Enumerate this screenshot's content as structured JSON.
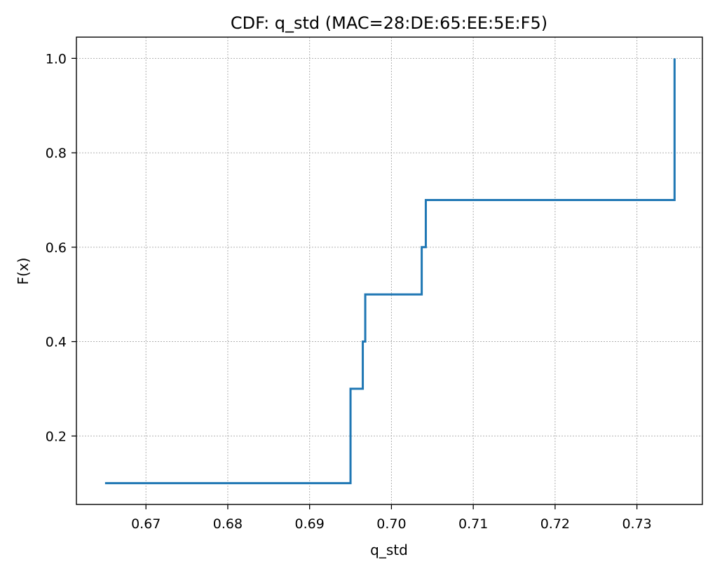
{
  "chart_data": {
    "type": "line",
    "step": "post",
    "title": "CDF: q_std (MAC=28:DE:65:EE:5E:F5)",
    "xlabel": "q_std",
    "ylabel": "F(x)",
    "xlim": [
      0.6615,
      0.738
    ],
    "ylim": [
      0.055,
      1.045
    ],
    "grid": true,
    "color": "#1f77b4",
    "x_ticks": [
      0.67,
      0.68,
      0.69,
      0.7,
      0.71,
      0.72,
      0.73
    ],
    "x_tick_labels": [
      "0.67",
      "0.68",
      "0.69",
      "0.70",
      "0.71",
      "0.72",
      "0.73"
    ],
    "y_ticks": [
      0.2,
      0.4,
      0.6,
      0.8,
      1.0
    ],
    "y_tick_labels": [
      "0.2",
      "0.4",
      "0.6",
      "0.8",
      "1.0"
    ],
    "x": [
      0.665,
      0.695,
      0.695,
      0.6965,
      0.6968,
      0.7037,
      0.7042,
      0.7346,
      0.7346,
      0.7346
    ],
    "y": [
      0.1,
      0.2,
      0.3,
      0.4,
      0.5,
      0.6,
      0.7,
      0.8,
      0.9,
      1.0
    ]
  }
}
